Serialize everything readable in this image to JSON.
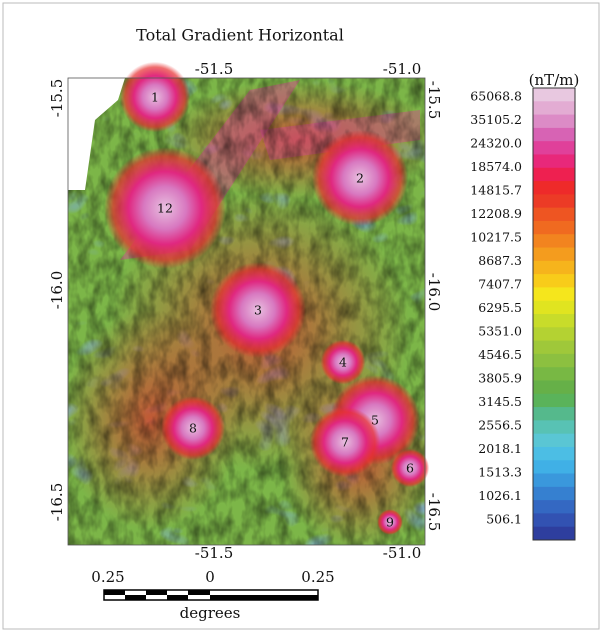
{
  "title": "Total Gradient Horizontal",
  "map": {
    "top_ticks": [
      "-51.5",
      "-51.0"
    ],
    "bottom_ticks": [
      "-51.5",
      "-51.0"
    ],
    "left_ticks": [
      "-15.5",
      "-16.0",
      "-16.5"
    ],
    "right_ticks": [
      "-15.5",
      "-16.0",
      "-16.5"
    ],
    "anomalies": [
      "1",
      "2",
      "3",
      "4",
      "5",
      "6",
      "7",
      "8",
      "9",
      "12"
    ]
  },
  "colorbar": {
    "unit": "(nT/m)",
    "labels": [
      "65068.8",
      "35105.2",
      "24320.0",
      "18574.0",
      "14815.7",
      "12208.9",
      "10217.5",
      "8687.3",
      "7407.7",
      "6295.5",
      "5351.0",
      "4546.5",
      "3805.9",
      "3145.5",
      "2556.5",
      "2018.1",
      "1513.3",
      "1026.1",
      "506.1"
    ],
    "colors": [
      "#e8c8e0",
      "#e3acd3",
      "#dc8bc6",
      "#d763b4",
      "#e0409a",
      "#e8287a",
      "#ee2050",
      "#ee2a2a",
      "#ec3b26",
      "#ee5522",
      "#f06a20",
      "#f2841f",
      "#f49c1e",
      "#f6b41c",
      "#f8cc1a",
      "#f5e61c",
      "#e0e420",
      "#c8dc2a",
      "#b4d232",
      "#9fc83a",
      "#8cc040",
      "#78b844",
      "#66b048",
      "#5ab35a",
      "#55b98c",
      "#58c2b4",
      "#5ac6d4",
      "#4cbee4",
      "#40b0e6",
      "#3a98dc",
      "#3680d0",
      "#3468c2",
      "#3252b2",
      "#2e3e9e"
    ]
  },
  "scale_bar": {
    "labels": [
      "0.25",
      "0",
      "0.25"
    ],
    "unit": "degrees"
  }
}
